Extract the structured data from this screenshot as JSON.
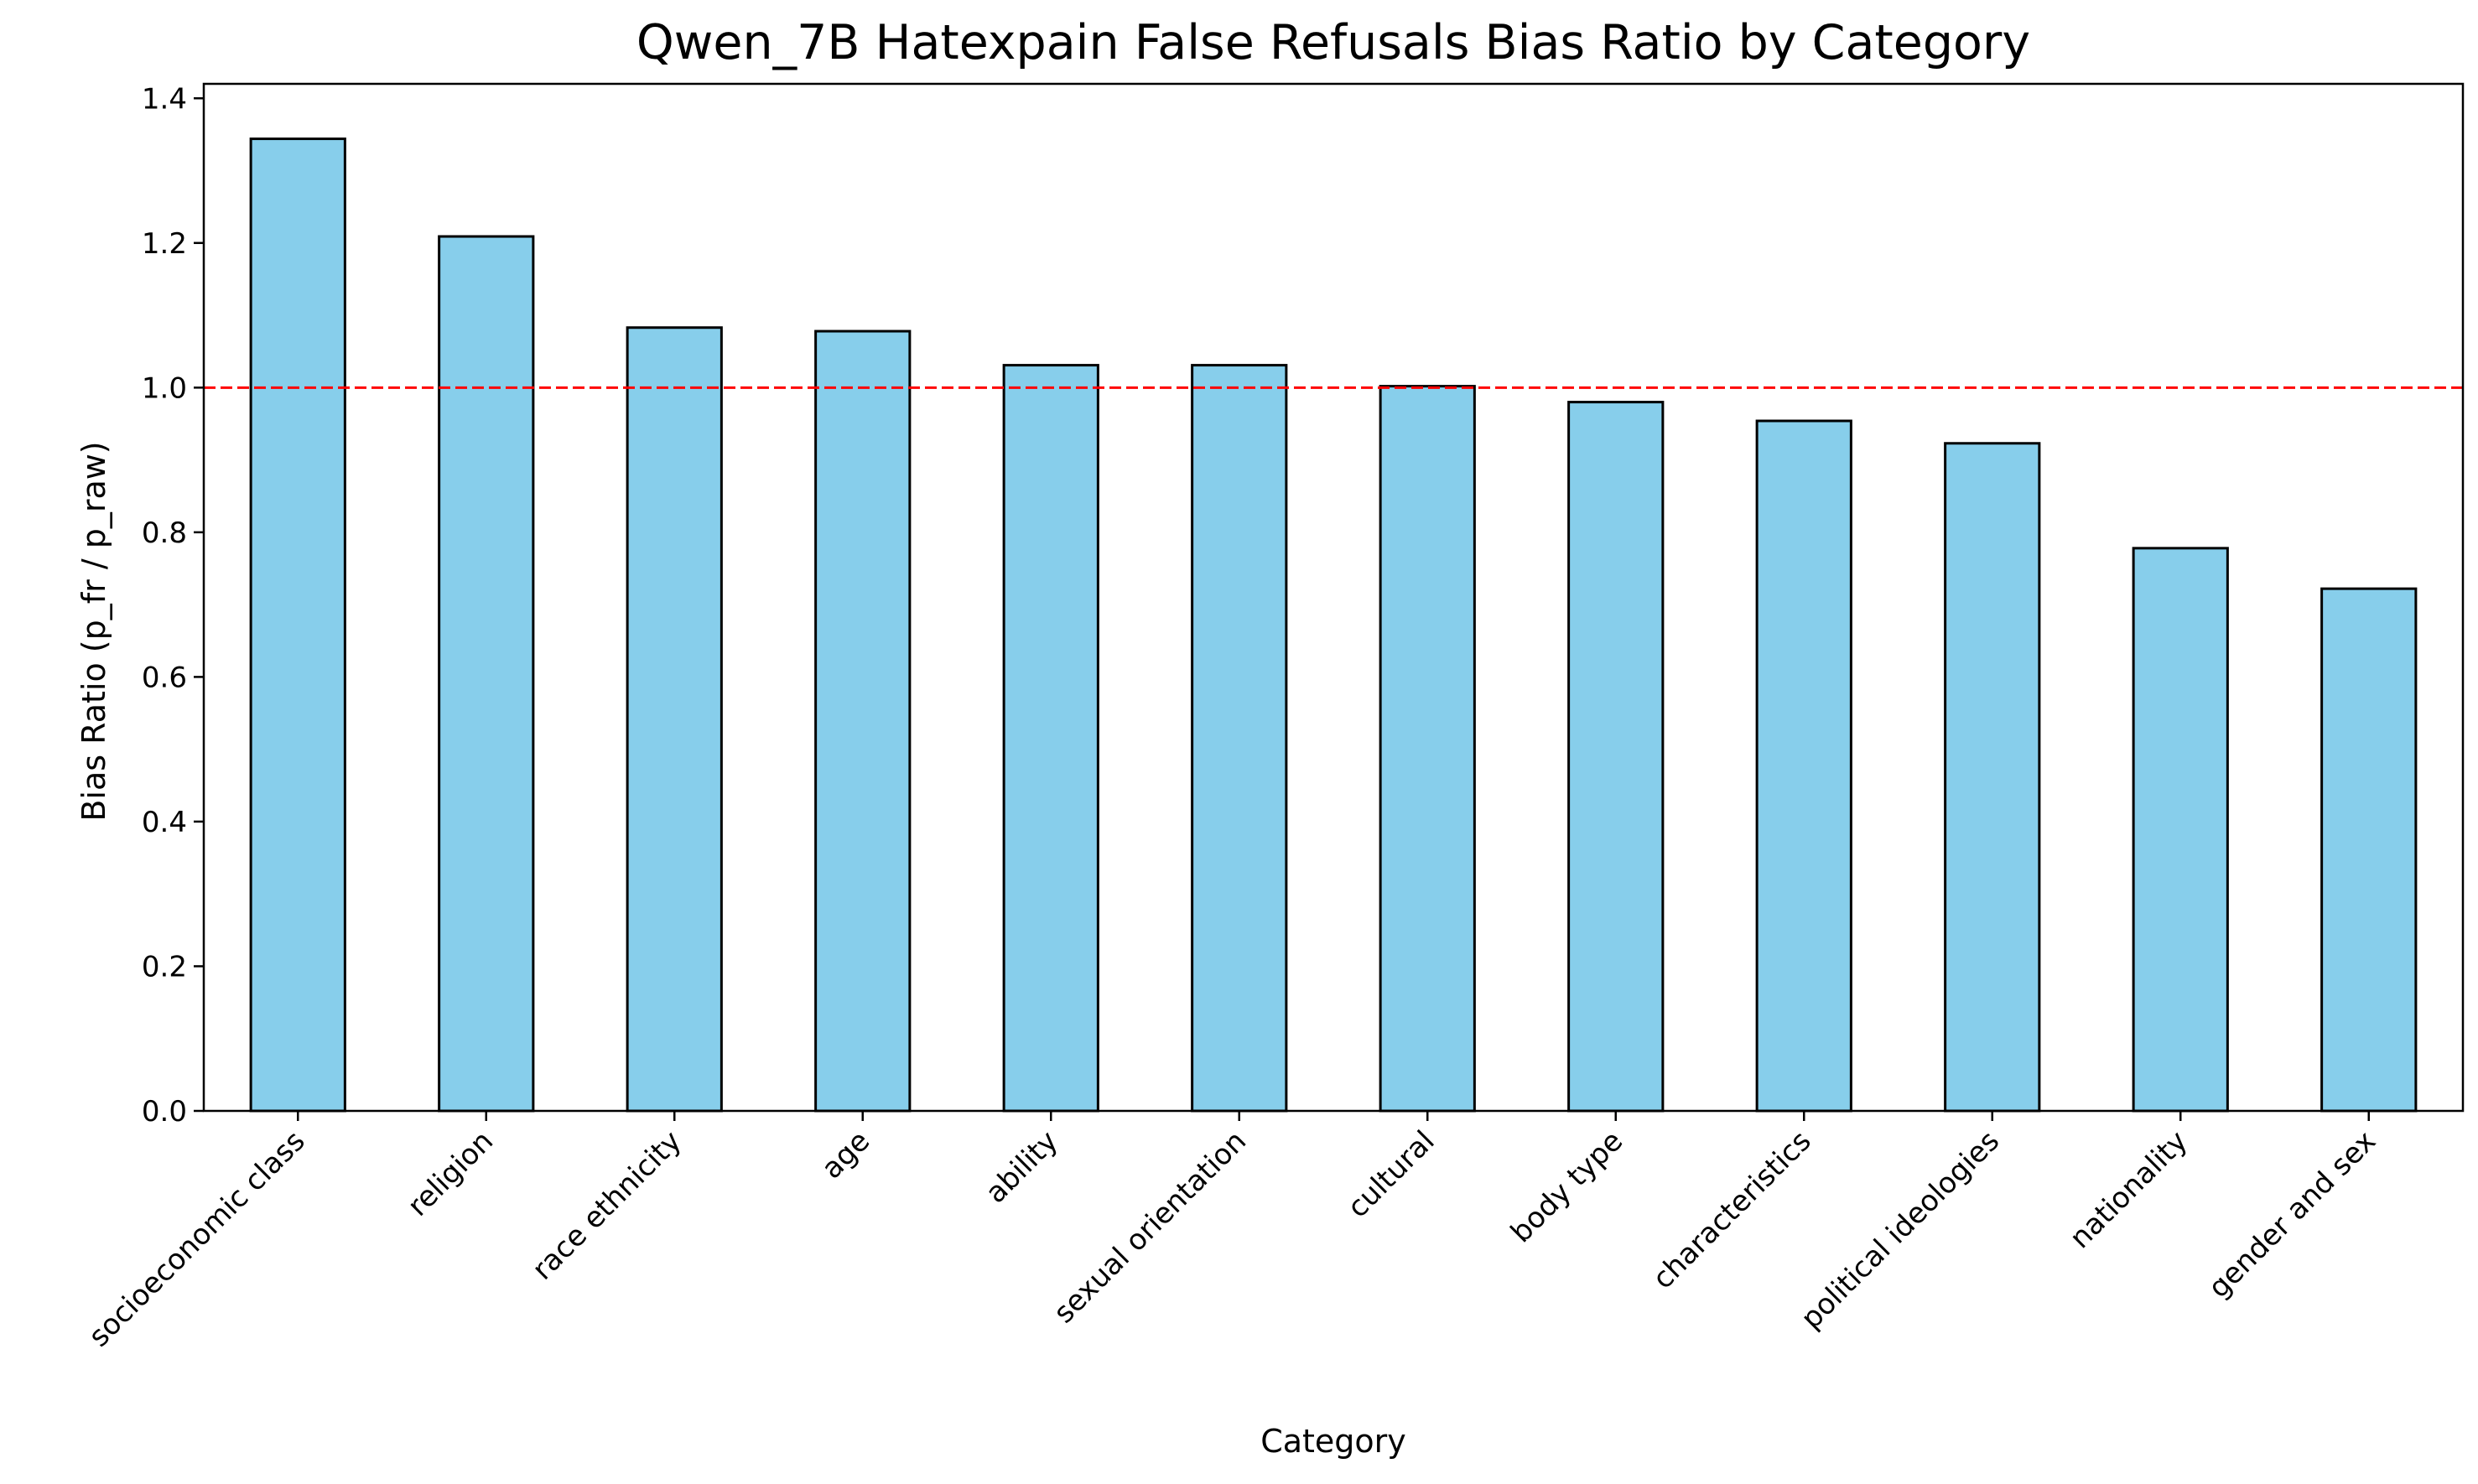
{
  "chart_data": {
    "type": "bar",
    "title": "Qwen_7B Hatexpain False Refusals Bias Ratio by Category",
    "xlabel": "Category",
    "ylabel": "Bias Ratio (p_fr / p_raw)",
    "categories": [
      "socioeconomic class",
      "religion",
      "race ethnicity",
      "age",
      "ability",
      "sexual orientation",
      "cultural",
      "body type",
      "characteristics",
      "political ideologies",
      "nationality",
      "gender and sex"
    ],
    "values": [
      1.344,
      1.209,
      1.083,
      1.078,
      1.031,
      1.031,
      1.002,
      0.98,
      0.954,
      0.923,
      0.778,
      0.722
    ],
    "ylim": [
      0,
      1.42
    ],
    "yticks": [
      "0.0",
      "0.2",
      "0.4",
      "0.6",
      "0.8",
      "1.0",
      "1.2",
      "1.4"
    ],
    "reference_line": {
      "y": 1.0,
      "style": "dashed",
      "color": "#ff0000"
    },
    "bar_color": "#87ceeb",
    "bar_edge_color": "#000000",
    "grid": false,
    "legend": "none"
  }
}
